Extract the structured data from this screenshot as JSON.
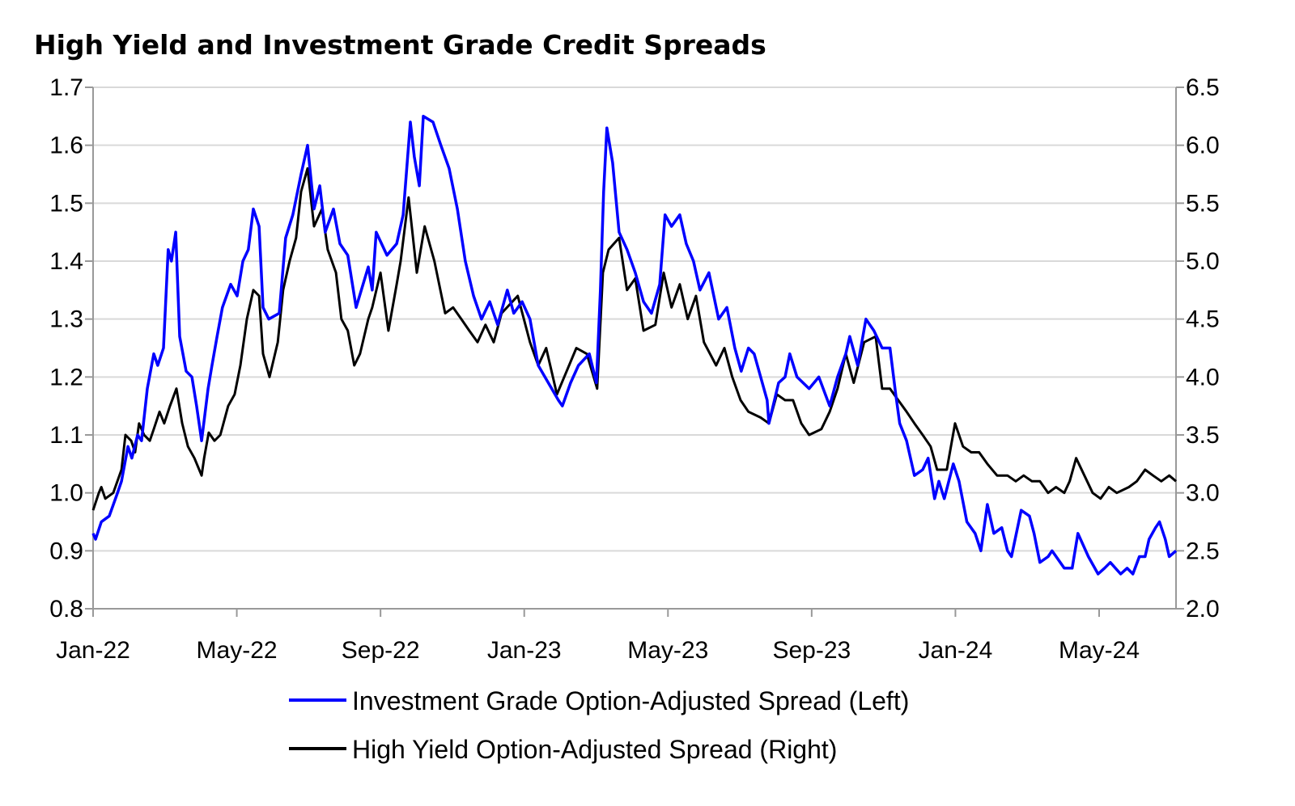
{
  "chart_data": {
    "type": "line",
    "title": "High Yield and Investment Grade Credit Spreads",
    "x_unit": "months since Jan-2022",
    "xlim": [
      0,
      30.14
    ],
    "x_tick_labels": [
      "Jan-22",
      "May-22",
      "Sep-22",
      "Jan-23",
      "May-23",
      "Sep-23",
      "Jan-24",
      "May-24"
    ],
    "x_tick_values": [
      0,
      4,
      8,
      12,
      16,
      20,
      24,
      28
    ],
    "y_left": {
      "lim": [
        0.8,
        1.7
      ],
      "ticks": [
        "0.8",
        "0.9",
        "1.0",
        "1.1",
        "1.2",
        "1.3",
        "1.4",
        "1.5",
        "1.6",
        "1.7"
      ]
    },
    "y_right": {
      "lim": [
        2.0,
        6.5
      ],
      "ticks": [
        "2.0",
        "2.5",
        "3.0",
        "3.5",
        "4.0",
        "4.5",
        "5.0",
        "5.5",
        "6.0",
        "6.5"
      ]
    },
    "grid": true,
    "legend_position": "bottom",
    "series": [
      {
        "name": "Investment Grade Option-Adjusted Spread (Left)",
        "axis": "left",
        "color": "#0000ff",
        "x": [
          0,
          0.07,
          0.23,
          0.45,
          0.68,
          0.79,
          0.97,
          1.08,
          1.24,
          1.35,
          1.51,
          1.69,
          1.8,
          1.96,
          2.09,
          2.18,
          2.3,
          2.41,
          2.59,
          2.75,
          2.88,
          3.02,
          3.2,
          3.31,
          3.45,
          3.6,
          3.83,
          4.01,
          4.17,
          4.32,
          4.46,
          4.62,
          4.73,
          4.89,
          5.18,
          5.36,
          5.56,
          5.79,
          5.97,
          6.15,
          6.31,
          6.46,
          6.69,
          6.87,
          7.09,
          7.32,
          7.66,
          7.77,
          7.88,
          8.18,
          8.45,
          8.63,
          8.83,
          8.94,
          9.08,
          9.19,
          9.46,
          9.68,
          9.91,
          10.14,
          10.36,
          10.59,
          10.81,
          11.04,
          11.26,
          11.53,
          11.71,
          11.94,
          12.16,
          12.39,
          12.95,
          13.06,
          13.29,
          13.51,
          13.81,
          14.01,
          14.12,
          14.21,
          14.3,
          14.46,
          14.64,
          14.86,
          15.09,
          15.32,
          15.54,
          15.77,
          15.92,
          16.1,
          16.33,
          16.51,
          16.71,
          16.89,
          17.14,
          17.41,
          17.64,
          17.86,
          18.04,
          18.24,
          18.4,
          18.58,
          18.76,
          18.81,
          19.08,
          19.26,
          19.39,
          19.59,
          19.93,
          20.2,
          20.5,
          20.72,
          20.95,
          21.06,
          21.28,
          21.51,
          21.73,
          21.96,
          22.18,
          22.34,
          22.45,
          22.64,
          22.86,
          23.09,
          23.24,
          23.42,
          23.54,
          23.69,
          23.94,
          24.1,
          24.32,
          24.55,
          24.71,
          24.89,
          25.07,
          25.29,
          25.45,
          25.56,
          25.83,
          26.06,
          26.19,
          26.35,
          26.58,
          26.69,
          27.03,
          27.25,
          27.41,
          27.7,
          27.97,
          28.15,
          28.31,
          28.6,
          28.78,
          28.94,
          29.12,
          29.28,
          29.39,
          29.57,
          29.68,
          29.84,
          29.95,
          30.14
        ],
        "y": [
          0.93,
          0.92,
          0.95,
          0.96,
          1.0,
          1.02,
          1.08,
          1.06,
          1.1,
          1.09,
          1.18,
          1.24,
          1.22,
          1.25,
          1.42,
          1.4,
          1.45,
          1.27,
          1.21,
          1.2,
          1.15,
          1.09,
          1.18,
          1.22,
          1.27,
          1.32,
          1.36,
          1.34,
          1.4,
          1.42,
          1.49,
          1.46,
          1.32,
          1.3,
          1.31,
          1.44,
          1.48,
          1.55,
          1.6,
          1.49,
          1.53,
          1.45,
          1.49,
          1.43,
          1.41,
          1.32,
          1.39,
          1.35,
          1.45,
          1.41,
          1.43,
          1.48,
          1.64,
          1.58,
          1.53,
          1.65,
          1.64,
          1.6,
          1.56,
          1.49,
          1.4,
          1.34,
          1.3,
          1.33,
          1.29,
          1.35,
          1.31,
          1.33,
          1.3,
          1.22,
          1.16,
          1.15,
          1.19,
          1.22,
          1.24,
          1.19,
          1.35,
          1.52,
          1.63,
          1.57,
          1.45,
          1.42,
          1.38,
          1.33,
          1.31,
          1.36,
          1.48,
          1.46,
          1.48,
          1.43,
          1.4,
          1.35,
          1.38,
          1.3,
          1.32,
          1.25,
          1.21,
          1.25,
          1.24,
          1.2,
          1.16,
          1.12,
          1.19,
          1.2,
          1.24,
          1.2,
          1.18,
          1.2,
          1.15,
          1.2,
          1.24,
          1.27,
          1.22,
          1.3,
          1.28,
          1.25,
          1.25,
          1.17,
          1.12,
          1.09,
          1.03,
          1.04,
          1.06,
          0.99,
          1.02,
          0.99,
          1.05,
          1.02,
          0.95,
          0.93,
          0.9,
          0.98,
          0.93,
          0.94,
          0.9,
          0.89,
          0.97,
          0.96,
          0.93,
          0.88,
          0.89,
          0.9,
          0.87,
          0.87,
          0.93,
          0.89,
          0.86,
          0.87,
          0.88,
          0.86,
          0.87,
          0.86,
          0.89,
          0.89,
          0.92,
          0.94,
          0.95,
          0.92,
          0.89,
          0.9
        ]
      },
      {
        "name": "High Yield Option-Adjusted Spread (Right)",
        "axis": "right",
        "color": "#000000",
        "x": [
          0,
          0.16,
          0.23,
          0.34,
          0.56,
          0.79,
          0.9,
          1.06,
          1.17,
          1.28,
          1.42,
          1.58,
          1.69,
          1.85,
          1.98,
          2.14,
          2.32,
          2.48,
          2.64,
          2.82,
          3.02,
          3.09,
          3.22,
          3.38,
          3.54,
          3.76,
          3.94,
          4.1,
          4.28,
          4.46,
          4.62,
          4.73,
          4.91,
          5.14,
          5.29,
          5.47,
          5.65,
          5.79,
          5.97,
          6.15,
          6.37,
          6.53,
          6.76,
          6.91,
          7.09,
          7.27,
          7.43,
          7.66,
          7.77,
          8.0,
          8.22,
          8.45,
          8.56,
          8.78,
          9.01,
          9.23,
          9.5,
          9.8,
          10.02,
          10.25,
          10.47,
          10.7,
          10.92,
          11.15,
          11.37,
          11.82,
          12.16,
          12.39,
          12.61,
          12.91,
          13.18,
          13.45,
          13.74,
          14.03,
          14.19,
          14.35,
          14.64,
          14.86,
          15.09,
          15.32,
          15.65,
          15.88,
          16.1,
          16.33,
          16.55,
          16.78,
          17.0,
          17.34,
          17.57,
          17.79,
          18.02,
          18.24,
          18.58,
          18.81,
          19.03,
          19.26,
          19.48,
          19.71,
          19.93,
          20.27,
          20.5,
          20.72,
          20.95,
          21.17,
          21.46,
          21.78,
          21.96,
          22.18,
          22.41,
          22.64,
          22.86,
          23.09,
          23.31,
          23.49,
          23.76,
          23.99,
          24.21,
          24.44,
          24.66,
          24.89,
          25.16,
          25.45,
          25.68,
          25.9,
          26.13,
          26.35,
          26.58,
          26.8,
          27.03,
          27.18,
          27.36,
          27.59,
          27.82,
          28.04,
          28.27,
          28.49,
          28.83,
          29.05,
          29.28,
          29.5,
          29.73,
          29.95,
          30.14
        ],
        "y": [
          2.85,
          3.0,
          3.05,
          2.95,
          3.0,
          3.2,
          3.5,
          3.45,
          3.35,
          3.6,
          3.5,
          3.45,
          3.55,
          3.7,
          3.6,
          3.75,
          3.9,
          3.6,
          3.4,
          3.3,
          3.15,
          3.3,
          3.52,
          3.45,
          3.5,
          3.75,
          3.85,
          4.1,
          4.5,
          4.75,
          4.7,
          4.2,
          4.0,
          4.3,
          4.75,
          5.0,
          5.2,
          5.6,
          5.8,
          5.3,
          5.45,
          5.1,
          4.9,
          4.5,
          4.4,
          4.1,
          4.2,
          4.5,
          4.6,
          4.9,
          4.4,
          4.8,
          5.0,
          5.55,
          4.9,
          5.3,
          5.0,
          4.55,
          4.6,
          4.5,
          4.4,
          4.3,
          4.45,
          4.3,
          4.55,
          4.7,
          4.3,
          4.1,
          4.25,
          3.85,
          4.05,
          4.25,
          4.2,
          3.9,
          4.9,
          5.1,
          5.2,
          4.75,
          4.85,
          4.4,
          4.45,
          4.9,
          4.6,
          4.8,
          4.5,
          4.7,
          4.3,
          4.1,
          4.25,
          4.0,
          3.8,
          3.7,
          3.65,
          3.6,
          3.85,
          3.8,
          3.8,
          3.6,
          3.5,
          3.55,
          3.7,
          3.9,
          4.2,
          3.95,
          4.3,
          4.35,
          3.9,
          3.9,
          3.8,
          3.7,
          3.6,
          3.5,
          3.4,
          3.2,
          3.2,
          3.6,
          3.4,
          3.35,
          3.35,
          3.25,
          3.15,
          3.15,
          3.1,
          3.15,
          3.1,
          3.1,
          3.0,
          3.05,
          3.0,
          3.1,
          3.3,
          3.15,
          3.0,
          2.95,
          3.05,
          3.0,
          3.05,
          3.1,
          3.2,
          3.15,
          3.1,
          3.15,
          3.1
        ]
      }
    ]
  }
}
